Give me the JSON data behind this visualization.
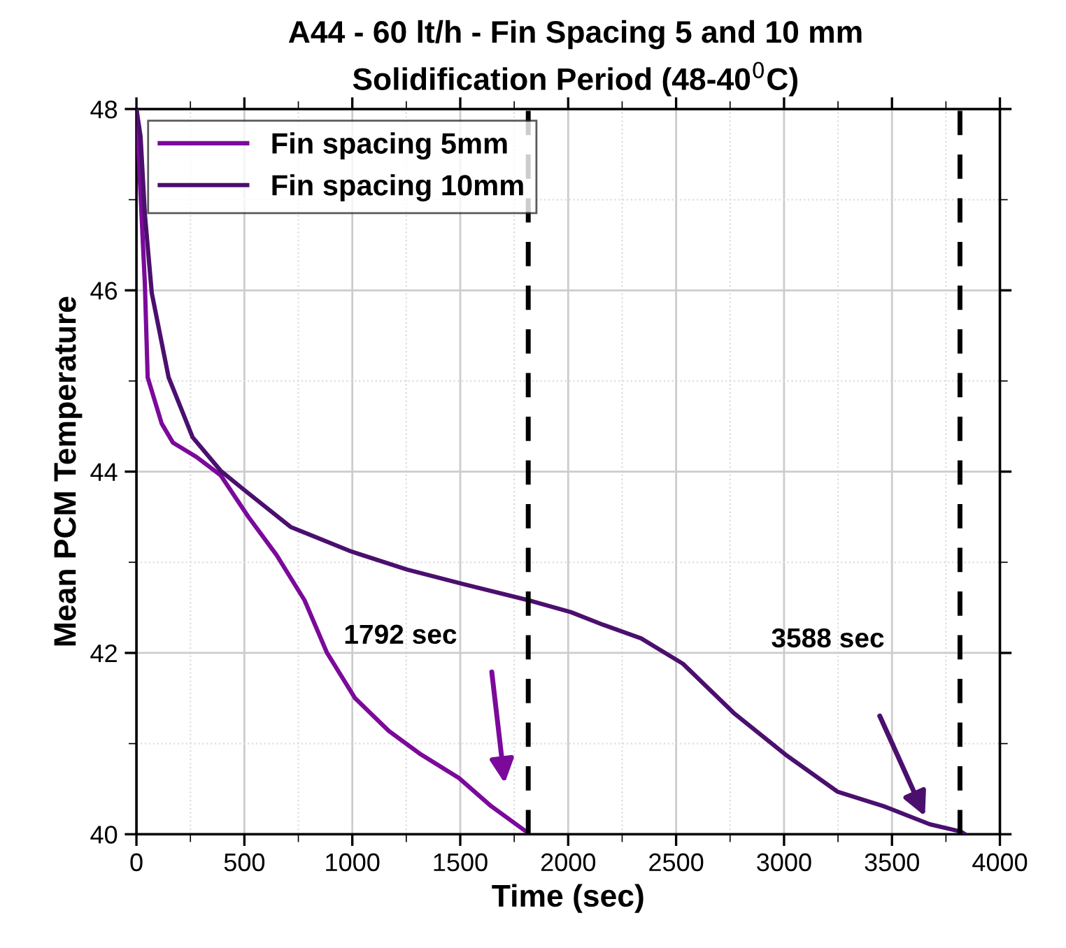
{
  "chart_data": {
    "type": "line",
    "title": "A44 - 60 lt/h - Fin Spacing 5 and 10 mm",
    "subtitle": "Solidification Period (48-40$^{0}$C)",
    "xlabel": "Time (sec)",
    "ylabel": "Mean PCM Temperature",
    "series": [
      {
        "name": "Fin spacing 5mm",
        "color": "#7b0a9a",
        "x": [
          0,
          39,
          52,
          117,
          169,
          279,
          390,
          519,
          649,
          779,
          883,
          1013,
          1169,
          1318,
          1494,
          1643,
          1805,
          1815
        ],
        "values": [
          48,
          46.07,
          45.04,
          44.53,
          44.32,
          44.16,
          43.96,
          43.5,
          43.08,
          42.58,
          42.0,
          41.5,
          41.14,
          40.88,
          40.62,
          40.31,
          40.03,
          40.0
        ]
      },
      {
        "name": "Fin spacing 10mm",
        "color": "#4b0f6e",
        "x": [
          0,
          19,
          39,
          71,
          149,
          260,
          390,
          493,
          714,
          994,
          1253,
          1513,
          1818,
          2013,
          2162,
          2338,
          2532,
          2766,
          3006,
          3247,
          3461,
          3675,
          3818,
          3838
        ],
        "values": [
          48,
          47.7,
          46.84,
          45.97,
          45.04,
          44.38,
          44.01,
          43.81,
          43.39,
          43.12,
          42.92,
          42.76,
          42.58,
          42.45,
          42.31,
          42.16,
          41.88,
          41.34,
          40.88,
          40.47,
          40.31,
          40.11,
          40.03,
          40.0
        ]
      }
    ],
    "xlim": [
      0,
      4000
    ],
    "xticks": [
      0,
      500,
      1000,
      1500,
      2000,
      2500,
      3000,
      3500,
      4000
    ],
    "ylim": [
      40,
      48
    ],
    "yticks": [
      40,
      42,
      44,
      46,
      48
    ],
    "ref_lines": [
      {
        "axis": "x",
        "value": 1815,
        "color": "#000000",
        "line_style": "dashed"
      },
      {
        "axis": "x",
        "value": 3815,
        "color": "#000000",
        "line_style": "dashed"
      }
    ],
    "annotations": [
      "1792 sec",
      "3588 sec"
    ],
    "grid": true,
    "legend": "top left",
    "line_style": "solid",
    "marker": "none"
  }
}
